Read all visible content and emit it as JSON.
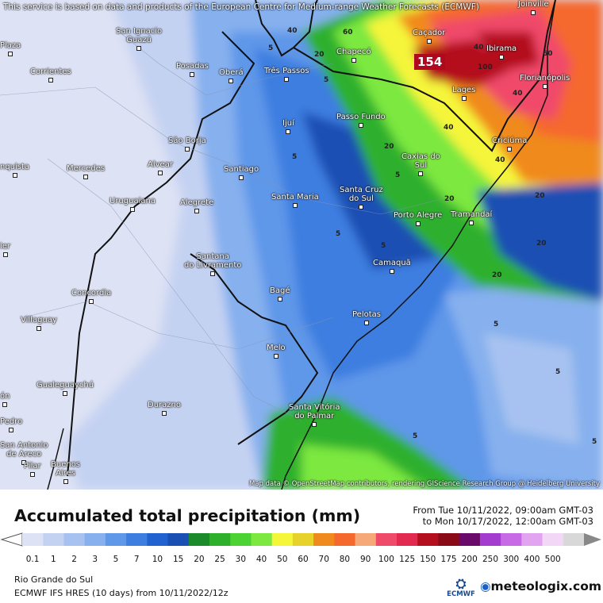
{
  "disclaimer": "This service is based on data and products of the European Centre for Medium-range Weather Forecasts (ECMWF)",
  "attribution": "Map data © OpenStreetMap contributors, rendering GIScience Research Group @ Heidelberg University",
  "max_value": "154",
  "cities": [
    {
      "name": "Joinville"
    },
    {
      "name": "San Ignacio\nGuazú"
    },
    {
      "name": "Caçador"
    },
    {
      "name": "Ibirama"
    },
    {
      "name": "Chapecó"
    },
    {
      "name": "Florianópolis"
    },
    {
      "name": "Posadas"
    },
    {
      "name": "Oberá"
    },
    {
      "name": "Três Passos"
    },
    {
      "name": "Lages"
    },
    {
      "name": "Corrientes"
    },
    {
      "name": "Ijuí"
    },
    {
      "name": "Passo Fundo"
    },
    {
      "name": "Criciúma"
    },
    {
      "name": "São Borja"
    },
    {
      "name": "Alvear"
    },
    {
      "name": "Mercedes"
    },
    {
      "name": "Santiago"
    },
    {
      "name": "Caxias do\nSul"
    },
    {
      "name": "Santa Maria"
    },
    {
      "name": "Santa Cruz\ndo Sul"
    },
    {
      "name": "Uruguaiana"
    },
    {
      "name": "Alegrete"
    },
    {
      "name": "Porto Alegre"
    },
    {
      "name": "Tramandaí"
    },
    {
      "name": "Santana\ndo Livramento"
    },
    {
      "name": "Camaquã"
    },
    {
      "name": "Concordia"
    },
    {
      "name": "Bagé"
    },
    {
      "name": "Pelotas"
    },
    {
      "name": "Villaguay"
    },
    {
      "name": "Melo"
    },
    {
      "name": "Gualeguaychú"
    },
    {
      "name": "Durazno"
    },
    {
      "name": "Santa Vitória\ndo Palmar"
    },
    {
      "name": "Buenos\nAires"
    },
    {
      "name": "Plaza"
    },
    {
      "name": "nquista"
    },
    {
      "name": "ier"
    },
    {
      "name": "ón"
    },
    {
      "name": "Pedro"
    },
    {
      "name": "San Antonio\nde Areco"
    },
    {
      "name": "Pilar"
    }
  ],
  "contour_labels": [
    "40",
    "60",
    "40",
    "100",
    "40",
    "60",
    "40",
    "20",
    "20",
    "20",
    "40",
    "20",
    "5",
    "5",
    "5",
    "5",
    "5",
    "5",
    "5",
    "5",
    "5",
    "5",
    "20",
    "20"
  ],
  "legend": {
    "title": "Accumulated total precipitation (mm)",
    "from": "From Tue 10/11/2022, 09:00am GMT-03",
    "to": "to Mon 10/17/2022, 12:00am GMT-03",
    "levels": [
      "0.1",
      "1",
      "2",
      "3",
      "5",
      "7",
      "10",
      "15",
      "20",
      "25",
      "30",
      "40",
      "50",
      "60",
      "70",
      "80",
      "90",
      "100",
      "125",
      "150",
      "175",
      "200",
      "250",
      "300",
      "400",
      "500"
    ],
    "colors": [
      "#dde2f4",
      "#c4d2f2",
      "#a7c2f0",
      "#86b0ee",
      "#5f97e9",
      "#3e7ee0",
      "#2262d0",
      "#1a4fb3",
      "#1b8a2a",
      "#2fb02d",
      "#4cd232",
      "#7ce840",
      "#f5f53a",
      "#e6d22b",
      "#f08a1e",
      "#f5682e",
      "#f7a878",
      "#f04a6a",
      "#e22a50",
      "#b40f1e",
      "#8a0a18",
      "#6a0a6a",
      "#a43cd0",
      "#c86ae6",
      "#e2a4f0",
      "#f2d8f6",
      "#d8d8d8"
    ]
  },
  "region": "Rio Grande do Sul",
  "model": "ECMWF IFS HRES (10 days) from 10/11/2022/12z",
  "ecmwf_label": "ECMWF",
  "brand": "meteologix.com"
}
